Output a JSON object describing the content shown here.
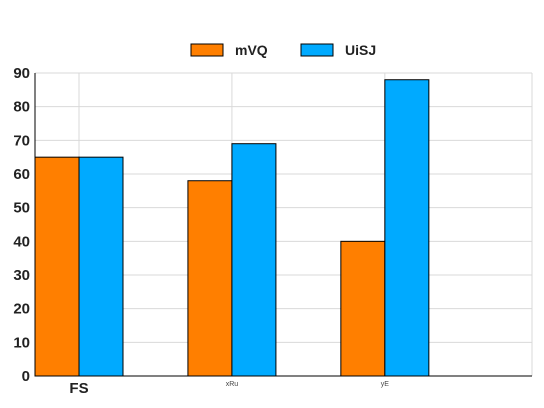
{
  "chart_data": {
    "type": "bar",
    "categories": [
      "FS",
      "xRu",
      "yE"
    ],
    "category_label_emphasis": [
      true,
      false,
      false
    ],
    "series": [
      {
        "name": "mVQ",
        "values": [
          65,
          58,
          40
        ],
        "color": "#ff7f00"
      },
      {
        "name": "UiSJ",
        "values": [
          65,
          69,
          88
        ],
        "color": "#00aaff"
      }
    ],
    "ylim": [
      0,
      90
    ],
    "yticks": [
      0,
      10,
      20,
      30,
      40,
      50,
      60,
      70,
      80,
      90
    ],
    "grid": true,
    "legend_position": "top-center",
    "title": "",
    "xlabel": "",
    "ylabel": ""
  }
}
